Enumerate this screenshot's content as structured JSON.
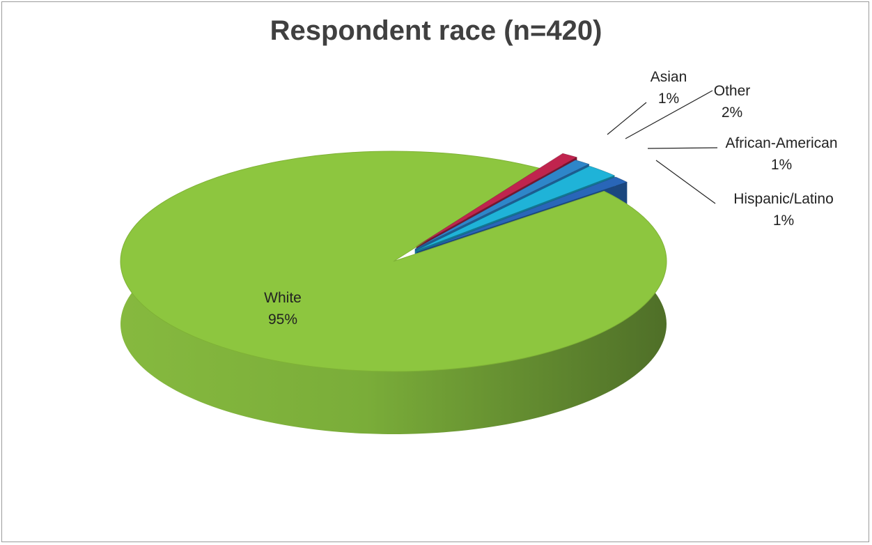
{
  "chart_data": {
    "type": "pie",
    "title": "Respondent race (n=420)",
    "style": "3d-exploded",
    "slices": [
      {
        "name": "White",
        "value": 95,
        "label": "95%",
        "color": "#8dc63f"
      },
      {
        "name": "Hispanic/Latino",
        "value": 1,
        "label": "1%",
        "color": "#c0244e"
      },
      {
        "name": "African-American",
        "value": 1,
        "label": "1%",
        "color": "#2e86c9"
      },
      {
        "name": "Other",
        "value": 2,
        "label": "2%",
        "color": "#1fb3d8"
      },
      {
        "name": "Asian",
        "value": 1,
        "label": "1%",
        "color": "#2966b8"
      }
    ]
  }
}
